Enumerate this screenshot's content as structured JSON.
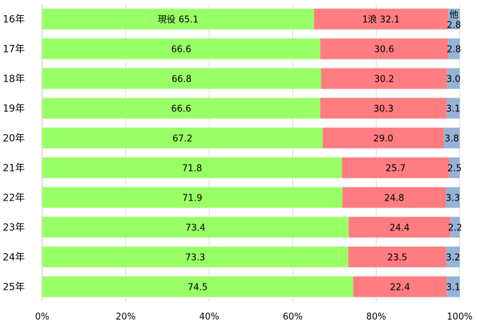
{
  "chart_data": {
    "type": "bar",
    "orientation": "horizontal",
    "stacked": true,
    "title": "",
    "xlabel": "",
    "ylabel": "",
    "xlim": [
      0,
      100
    ],
    "x_ticks": [
      "0%",
      "20%",
      "40%",
      "60%",
      "80%",
      "100%"
    ],
    "grid": "vertical",
    "categories": [
      "16年",
      "17年",
      "18年",
      "19年",
      "20年",
      "21年",
      "22年",
      "23年",
      "24年",
      "25年"
    ],
    "series": [
      {
        "values": [
          65.1,
          66.6,
          66.8,
          66.6,
          67.2,
          71.8,
          71.9,
          73.4,
          73.3,
          74.5
        ],
        "color": "#99ff66"
      },
      {
        "values": [
          32.1,
          30.6,
          30.2,
          30.3,
          29.0,
          25.7,
          24.8,
          24.4,
          23.5,
          22.4
        ],
        "color": "#ff7c80"
      },
      {
        "values": [
          2.8,
          2.8,
          3.0,
          3.1,
          3.8,
          2.5,
          3.3,
          2.2,
          3.2,
          3.1
        ],
        "color": "#95b3d7"
      }
    ],
    "first_row_labels": [
      "現役 65.1",
      "1浪 32.1",
      "他",
      "2.8"
    ]
  }
}
